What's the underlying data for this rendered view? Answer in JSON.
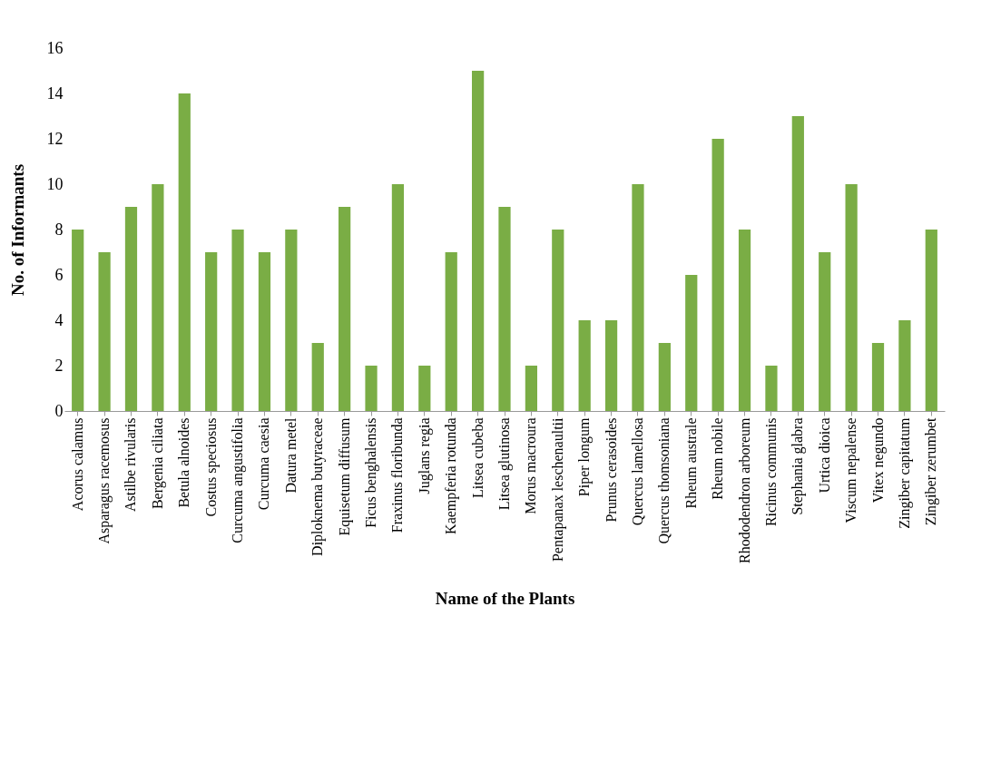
{
  "chart_data": {
    "type": "bar",
    "xlabel": "Name of the Plants",
    "ylabel": "No. of Informants",
    "categories": [
      "Acorus calamus",
      "Asparagus racemosus",
      "Astilbe rivularis",
      "Bergenia ciliata",
      "Betula alnoides",
      "Costus speciosus",
      "Curcuma angustifolia",
      "Curcuma caesia",
      "Datura metel",
      "Diploknema butyraceae",
      "Equisetum diffusum",
      "Ficus benghalensis",
      "Fraxinus floribunda",
      "Juglans regia",
      "Kaempferia rotunda",
      "Litsea cubeba",
      "Litsea glutinosa",
      "Morus macroura",
      "Pentapanax leschenaultii",
      "Piper longum",
      "Prunus cerasoides",
      "Quercus lamellosa",
      "Quercus thomsoniana",
      "Rheum australe",
      "Rheum nobile",
      "Rhododendron arboreum",
      "Ricinus communis",
      "Stephania glabra",
      "Urtica dioica",
      "Viscum nepalense",
      "Vitex negundo",
      "Zingiber capitatum",
      "Zingiber zerumbet"
    ],
    "values": [
      8,
      7,
      9,
      10,
      14,
      7,
      8,
      7,
      8,
      3,
      9,
      2,
      10,
      2,
      7,
      15,
      9,
      2,
      8,
      4,
      4,
      10,
      3,
      6,
      12,
      8,
      2,
      13,
      7,
      10,
      3,
      4,
      8
    ],
    "color": "#7aad45",
    "ylim": [
      0,
      16
    ],
    "yticks": [
      0,
      2,
      4,
      6,
      8,
      10,
      12,
      14,
      16
    ],
    "grid": false
  }
}
